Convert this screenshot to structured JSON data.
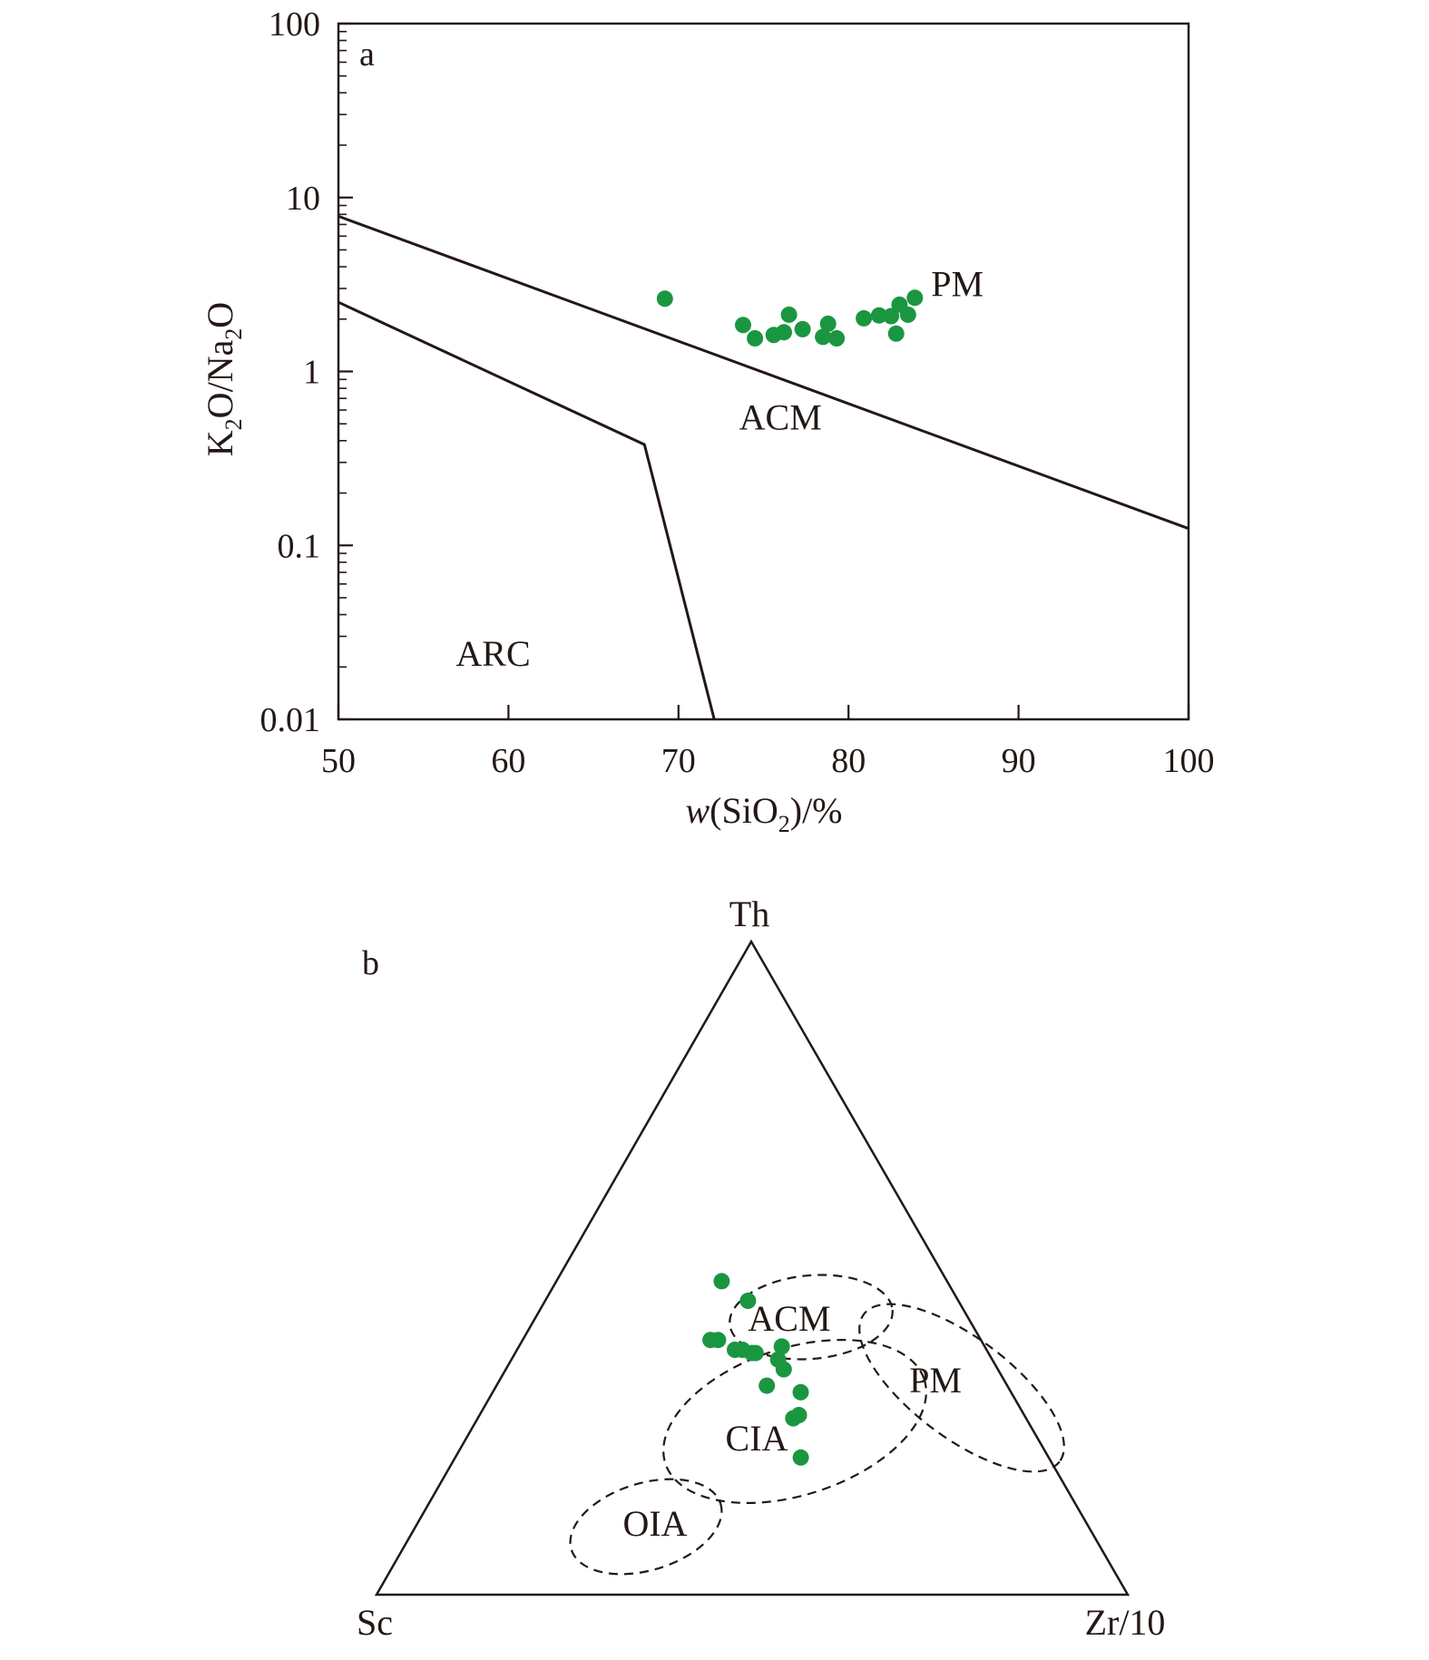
{
  "chart_data": [
    {
      "type": "scatter",
      "panel_label": "a",
      "xlabel_italic": "w",
      "xlabel_rest_before_sub": "(SiO",
      "xlabel_sub": "2",
      "xlabel_after_sub": ")/%",
      "ylabel_parts": [
        "K",
        "2",
        "O/Na",
        "2",
        "O"
      ],
      "x_scale": "linear",
      "y_scale": "log",
      "xlim": [
        50,
        100
      ],
      "ylim": [
        0.01,
        100
      ],
      "x_ticks": [
        50,
        60,
        70,
        80,
        90,
        100
      ],
      "x_tick_labels": [
        "50",
        "60",
        "70",
        "80",
        "90",
        "100"
      ],
      "y_ticks": [
        0.01,
        0.1,
        1,
        10,
        100
      ],
      "y_tick_labels": [
        "0.01",
        "0.1",
        "1",
        "10",
        "100"
      ],
      "grid": false,
      "marker_color": "#1a9641",
      "points": [
        [
          69.2,
          2.62
        ],
        [
          73.8,
          1.85
        ],
        [
          74.5,
          1.55
        ],
        [
          75.6,
          1.62
        ],
        [
          76.2,
          1.68
        ],
        [
          76.5,
          2.12
        ],
        [
          77.3,
          1.75
        ],
        [
          78.5,
          1.58
        ],
        [
          78.8,
          1.88
        ],
        [
          79.3,
          1.55
        ],
        [
          80.9,
          2.02
        ],
        [
          81.8,
          2.1
        ],
        [
          82.5,
          2.08
        ],
        [
          82.8,
          1.65
        ],
        [
          83.0,
          2.42
        ],
        [
          83.5,
          2.12
        ],
        [
          83.9,
          2.65
        ]
      ],
      "boundaries": [
        [
          [
            50,
            7.8
          ],
          [
            100,
            0.125
          ]
        ],
        [
          [
            50,
            2.5
          ],
          [
            68.0,
            0.38
          ],
          [
            72.1,
            0.01
          ]
        ]
      ],
      "region_labels": [
        {
          "text": "PM",
          "x": 86.4,
          "y": 3.2
        },
        {
          "text": "ACM",
          "x": 76.0,
          "y": 0.55
        },
        {
          "text": "ARC",
          "x": 59.1,
          "y": 0.024
        }
      ]
    },
    {
      "type": "scatter",
      "panel_label": "b",
      "diagram": "ternary",
      "vertices": {
        "top": "Th",
        "left": "Sc",
        "right": "Zr/10"
      },
      "marker_color": "#1a9641",
      "points_th_sc_zr": [
        [
          0.48,
          0.3,
          0.22
        ],
        [
          0.45,
          0.28,
          0.27
        ],
        [
          0.39,
          0.36,
          0.25
        ],
        [
          0.39,
          0.35,
          0.26
        ],
        [
          0.375,
          0.335,
          0.29
        ],
        [
          0.375,
          0.325,
          0.3
        ],
        [
          0.37,
          0.315,
          0.315
        ],
        [
          0.37,
          0.31,
          0.32
        ],
        [
          0.38,
          0.27,
          0.35
        ],
        [
          0.36,
          0.285,
          0.355
        ],
        [
          0.345,
          0.285,
          0.37
        ],
        [
          0.32,
          0.32,
          0.36
        ],
        [
          0.31,
          0.28,
          0.41
        ],
        [
          0.27,
          0.31,
          0.42
        ],
        [
          0.275,
          0.3,
          0.425
        ],
        [
          0.21,
          0.33,
          0.46
        ]
      ],
      "fields": [
        {
          "text": "ACM",
          "center": [
            0.44,
            0.33,
            0.23
          ],
          "label_at": [
            0.42,
            0.36,
            0.22
          ]
        },
        {
          "text": "PM",
          "center": [
            0.29,
            0.27,
            0.44
          ],
          "label_at": [
            0.33,
            0.22,
            0.45
          ]
        },
        {
          "text": "CIA",
          "center": [
            0.23,
            0.45,
            0.32
          ],
          "label_at": [
            0.24,
            0.47,
            0.29
          ]
        },
        {
          "text": "OIA",
          "center": [
            0.06,
            0.62,
            0.32
          ],
          "label_at": [
            0.08,
            0.64,
            0.28
          ]
        }
      ]
    }
  ]
}
